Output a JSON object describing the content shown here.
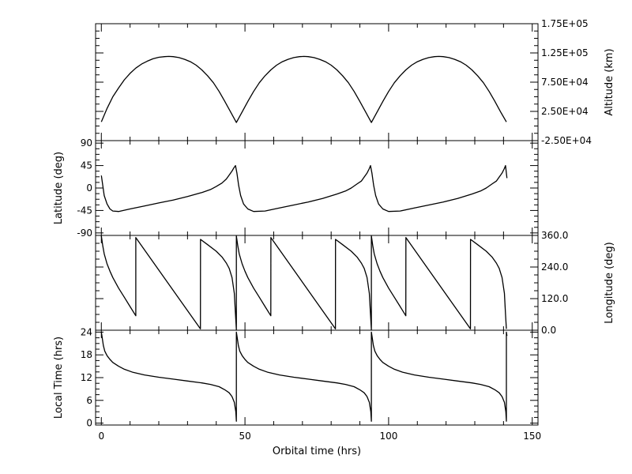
{
  "chart_data": [
    {
      "type": "line",
      "title": "",
      "xlabel": "",
      "ylabel": "Altitude (km)",
      "ylabel_side": "right",
      "ylim": [
        -25000,
        175000
      ],
      "yticks": [
        -25000,
        25000,
        75000,
        125000,
        175000
      ],
      "yticklabels": [
        "-2.50E+04",
        "2.50E+04",
        "7.50E+04",
        "1.25E+05",
        "1.75E+05"
      ],
      "series": [
        {
          "x": [
            0,
            2,
            4,
            6,
            8,
            10,
            12,
            14,
            16,
            18,
            20,
            22,
            23.5,
            25,
            27,
            29,
            31,
            33,
            35,
            37,
            39,
            41,
            43,
            45,
            47,
            49,
            51,
            53,
            55,
            57,
            59,
            61,
            63,
            65,
            67,
            69,
            70.5,
            72,
            74,
            76,
            78,
            80,
            82,
            84,
            86,
            88,
            90,
            92,
            94,
            96,
            98,
            100,
            102,
            104,
            106,
            108,
            110,
            112,
            114,
            116,
            117.5,
            119,
            121,
            123,
            125,
            127,
            129,
            131,
            133,
            135,
            137,
            139,
            141
          ],
          "y": [
            7000,
            30000,
            50000,
            65000,
            79000,
            90000,
            99000,
            106000,
            111000,
            115000,
            117500,
            118600,
            119000,
            118600,
            117000,
            114000,
            110000,
            104000,
            96000,
            86000,
            74000,
            59000,
            42000,
            24000,
            6000,
            24000,
            42000,
            59000,
            74000,
            86000,
            96000,
            104000,
            110000,
            114000,
            117000,
            118600,
            119000,
            118600,
            117000,
            114000,
            110000,
            104000,
            96000,
            86000,
            74000,
            59000,
            42000,
            24000,
            6000,
            24000,
            42000,
            59000,
            74000,
            86000,
            96000,
            104000,
            110000,
            114000,
            117000,
            118600,
            119000,
            118600,
            117000,
            114000,
            110000,
            104000,
            96000,
            86000,
            74000,
            59000,
            42000,
            24000,
            7000
          ]
        }
      ]
    },
    {
      "type": "line",
      "title": "",
      "xlabel": "",
      "ylabel": "Latitude (deg)",
      "ylabel_side": "left",
      "ylim": [
        -95,
        95
      ],
      "yticks": [
        -90,
        -45,
        0,
        45,
        90
      ],
      "yticklabels": [
        "-90",
        "-45",
        "0",
        "45",
        "90"
      ],
      "series": [
        {
          "x": [
            0,
            0.5,
            1,
            2,
            3,
            4,
            6,
            10,
            15,
            20,
            25,
            30,
            35,
            38,
            40,
            42,
            43.5,
            44.5,
            45.5,
            46.2,
            46.7,
            47.2,
            47.8,
            48.5,
            49.5,
            51,
            53,
            57,
            62,
            67,
            72,
            77,
            82,
            85,
            87,
            89,
            90.5,
            91.5,
            92.5,
            93.2,
            93.7,
            94.2,
            94.8,
            95.5,
            96.5,
            98,
            100,
            104,
            109,
            114,
            119,
            124,
            129,
            132,
            134,
            136,
            137.5,
            138.5,
            139.5,
            140.2,
            140.7,
            141.2
          ],
          "y": [
            25,
            5,
            -15,
            -32,
            -42,
            -46,
            -47,
            -42,
            -36,
            -30,
            -24,
            -17,
            -9,
            -3,
            3,
            10,
            18,
            26,
            34,
            41,
            45,
            30,
            5,
            -15,
            -32,
            -42,
            -47,
            -46,
            -40,
            -34,
            -28,
            -21,
            -12,
            -6,
            0,
            8,
            14,
            22,
            30,
            38,
            45,
            30,
            5,
            -15,
            -32,
            -42,
            -47,
            -46,
            -40,
            -34,
            -28,
            -21,
            -12,
            -6,
            0,
            8,
            14,
            22,
            30,
            38,
            45,
            20
          ]
        }
      ]
    },
    {
      "type": "line",
      "title": "",
      "xlabel": "",
      "ylabel": "Longitude (deg)",
      "ylabel_side": "right",
      "ylim": [
        0,
        360
      ],
      "yticks": [
        0,
        120,
        240,
        360
      ],
      "yticklabels": [
        "0.0",
        "120.0",
        "240.0",
        "360.0"
      ],
      "series": [
        {
          "x": [
            0,
            0.5,
            1,
            2,
            3,
            4,
            6,
            8,
            10,
            12,
            12.01,
            34.5,
            34.51,
            37,
            40,
            42,
            43.5,
            44.5,
            45.5,
            46.3,
            46.7,
            47,
            47.01,
            47.5,
            48,
            49,
            50,
            51,
            53,
            55,
            57,
            59,
            59.01,
            81.5,
            81.51,
            84,
            87,
            89,
            90.5,
            91.5,
            92.5,
            93.3,
            93.7,
            94,
            94.01,
            94.5,
            95,
            96,
            97,
            98,
            100,
            102,
            104,
            106,
            106.01,
            128.5,
            128.51,
            131,
            134,
            136,
            137.5,
            138.5,
            139.5,
            140.3,
            140.7,
            141
          ],
          "y": [
            358,
            320,
            290,
            252,
            224,
            200,
            160,
            125,
            90,
            55,
            352,
            5,
            345,
            325,
            300,
            278,
            255,
            235,
            200,
            140,
            60,
            2,
            358,
            320,
            290,
            252,
            224,
            200,
            160,
            125,
            90,
            55,
            352,
            5,
            345,
            325,
            300,
            278,
            255,
            235,
            200,
            140,
            60,
            2,
            358,
            320,
            290,
            252,
            224,
            200,
            160,
            125,
            90,
            55,
            352,
            5,
            345,
            325,
            300,
            278,
            255,
            235,
            200,
            140,
            60,
            5
          ]
        }
      ]
    },
    {
      "type": "line",
      "title": "",
      "xlabel": "Orbital time (hrs)",
      "ylabel": "Local Time (hrs)",
      "ylabel_side": "left",
      "xlim": [
        -2,
        152
      ],
      "xticks": [
        0,
        50,
        100,
        150
      ],
      "xticklabels": [
        "0",
        "50",
        "100",
        "150"
      ],
      "ylim": [
        -0.5,
        24.5
      ],
      "yticks": [
        0,
        6,
        12,
        18,
        24
      ],
      "yticklabels": [
        "0",
        "6",
        "12",
        "18",
        "24"
      ],
      "series": [
        {
          "x": [
            0,
            0.3,
            0.7,
            1.2,
            2,
            3,
            4,
            6,
            8,
            11,
            15,
            20,
            25,
            30,
            35,
            38,
            41,
            43,
            44.5,
            45.5,
            46.3,
            46.8,
            47,
            47.01,
            47.3,
            47.7,
            48.2,
            49,
            50,
            51,
            53,
            55,
            58,
            62,
            67,
            72,
            77,
            82,
            85,
            88,
            90,
            91.5,
            92.5,
            93.3,
            93.8,
            94,
            94.01,
            94.3,
            94.7,
            95.2,
            96,
            97,
            98,
            100,
            102,
            105,
            109,
            114,
            119,
            124,
            129,
            132,
            135,
            137,
            138.5,
            139.5,
            140.3,
            140.8,
            141,
            141.01,
            141.2
          ],
          "y": [
            24,
            22.5,
            20.5,
            19,
            17.8,
            16.8,
            16,
            15,
            14.2,
            13.4,
            12.7,
            12.1,
            11.6,
            11.1,
            10.6,
            10.2,
            9.6,
            8.8,
            8,
            7,
            5.5,
            3,
            0.5,
            24,
            22.5,
            20.5,
            19,
            17.8,
            16.8,
            16,
            15,
            14.2,
            13.4,
            12.7,
            12.1,
            11.6,
            11.1,
            10.6,
            10.2,
            9.6,
            8.8,
            8,
            7,
            5.5,
            3,
            0.5,
            24,
            22.5,
            20.5,
            19,
            17.8,
            16.8,
            16,
            15,
            14.2,
            13.4,
            12.7,
            12.1,
            11.6,
            11.1,
            10.6,
            10.2,
            9.6,
            8.8,
            8,
            7,
            5.5,
            3,
            0.5,
            24,
            23
          ]
        }
      ]
    }
  ]
}
